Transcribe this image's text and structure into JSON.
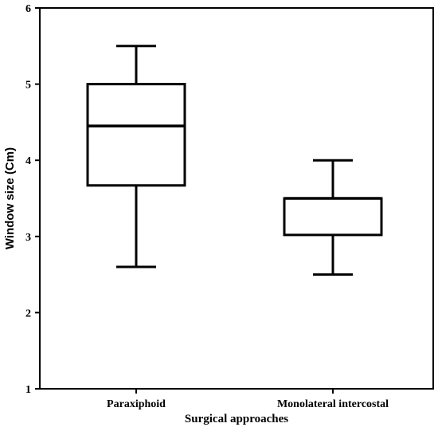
{
  "chart_data": {
    "type": "boxplot",
    "xlabel": "Surgical approaches",
    "ylabel": "Window size (Cm)",
    "ylim": [
      1,
      6
    ],
    "yticks": [
      1,
      2,
      3,
      4,
      5,
      6
    ],
    "grid": false,
    "categories": [
      "Paraxiphoid",
      "Monolateral intercostal"
    ],
    "boxes": [
      {
        "category": "Paraxiphoid",
        "min": 2.6,
        "q1": 3.67,
        "median": 4.45,
        "q3": 5.0,
        "max": 5.5
      },
      {
        "category": "Monolateral intercostal",
        "min": 2.5,
        "q1": 3.02,
        "median": 3.5,
        "q3": 3.5,
        "max": 4.0
      }
    ]
  }
}
